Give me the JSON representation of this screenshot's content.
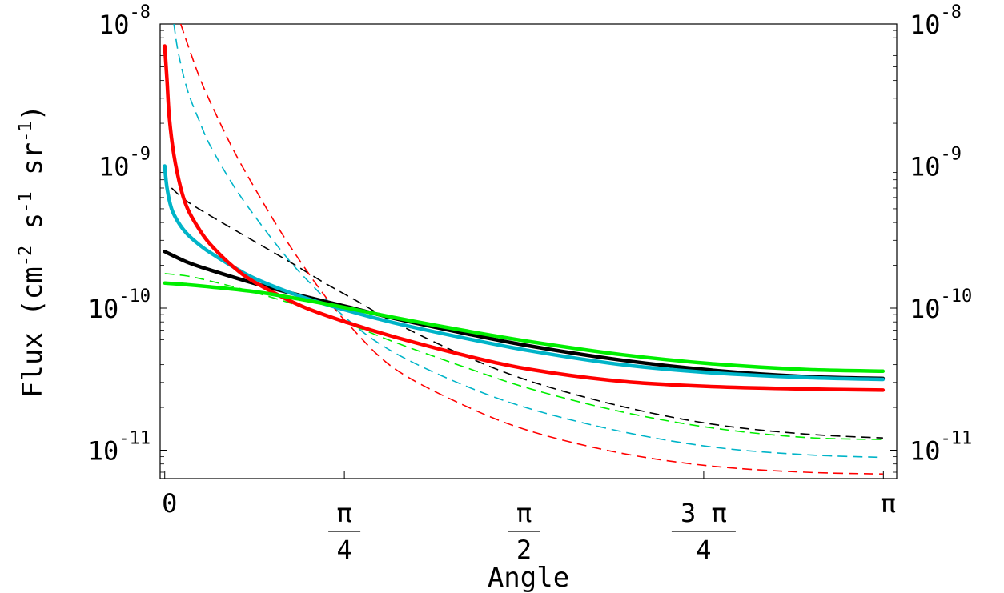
{
  "chart_data": {
    "type": "line",
    "xlabel": "Angle",
    "ylabel": "Flux (cm-2 s-1 sr-1)",
    "ylabel_parts": {
      "pre": "Flux (cm",
      "sup1": "-2",
      "mid1": " s",
      "sup2": "-1",
      "mid2": " sr",
      "sup3": "-1",
      "post": ")"
    },
    "xlim": [
      -0.02,
      3.2
    ],
    "ylim_log10": [
      -11.2,
      -8
    ],
    "y_scale": "log",
    "x_ticks": [
      {
        "value": 0,
        "num": "0",
        "den": ""
      },
      {
        "value": 0.7854,
        "num": "π",
        "den": "4"
      },
      {
        "value": 1.5708,
        "num": "π",
        "den": "2"
      },
      {
        "value": 2.3562,
        "num": "3 π",
        "den": "4"
      },
      {
        "value": 3.1416,
        "num": "π",
        "den": ""
      }
    ],
    "y_ticks": [
      {
        "exp": -8,
        "base": "10",
        "sup": "-8"
      },
      {
        "exp": -9,
        "base": "10",
        "sup": "-9"
      },
      {
        "exp": -10,
        "base": "10",
        "sup": "-10"
      },
      {
        "exp": -11,
        "base": "10",
        "sup": "-11"
      }
    ],
    "series": [
      {
        "color": "#000000",
        "style": "dashed",
        "x": [
          0.03,
          0.1,
          0.25,
          0.4,
          0.55,
          0.7,
          0.85,
          1.0,
          1.3,
          1.6,
          2.0,
          2.4,
          2.8,
          3.14
        ],
        "y": [
          7e-10,
          5.6e-10,
          4e-10,
          2.9e-10,
          2.1e-10,
          1.5e-10,
          1.1e-10,
          8e-11,
          4.7e-11,
          3.05e-11,
          2.03e-11,
          1.52e-11,
          1.3e-11,
          1.22e-11
        ]
      },
      {
        "color": "#00b4c8",
        "style": "dashed",
        "x": [
          0.04,
          0.06,
          0.1,
          0.15,
          0.2,
          0.3,
          0.4,
          0.5,
          0.6,
          0.8,
          1.0,
          1.3,
          1.6,
          2.0,
          2.4,
          2.8,
          3.14
        ],
        "y": [
          1e-08,
          6.2e-09,
          3.4e-09,
          2.1e-09,
          1.38e-09,
          7.3e-10,
          4.3e-10,
          2.65e-10,
          1.72e-10,
          8.3e-11,
          4.9e-11,
          2.9e-11,
          1.95e-11,
          1.35e-11,
          1.05e-11,
          9.3e-12,
          8.9e-12
        ]
      },
      {
        "color": "#ff0000",
        "style": "dashed",
        "x": [
          0.07,
          0.1,
          0.15,
          0.2,
          0.3,
          0.4,
          0.5,
          0.6,
          0.7,
          0.8,
          1.0,
          1.3,
          1.6,
          2.0,
          2.4,
          2.8,
          3.14
        ],
        "y": [
          1e-08,
          7.2e-09,
          4.3e-09,
          2.8e-09,
          1.3e-09,
          6.7e-10,
          3.6e-10,
          2.05e-10,
          1.22e-10,
          7.8e-11,
          3.8e-11,
          2.1e-11,
          1.36e-11,
          9.5e-12,
          7.7e-12,
          7e-12,
          6.8e-12
        ]
      },
      {
        "color": "#00ee00",
        "style": "dashed",
        "x": [
          0.0,
          0.1,
          0.2,
          0.4,
          0.6,
          0.8,
          1.0,
          1.3,
          1.6,
          2.0,
          2.4,
          2.8,
          3.14
        ],
        "y": [
          1.75e-10,
          1.68e-10,
          1.55e-10,
          1.28e-10,
          1.02e-10,
          7.8e-11,
          5.8e-11,
          3.9e-11,
          2.7e-11,
          1.86e-11,
          1.43e-11,
          1.23e-11,
          1.19e-11
        ]
      },
      {
        "color": "#000000",
        "style": "solid",
        "x": [
          0.0,
          0.1,
          0.2,
          0.4,
          0.6,
          0.8,
          1.0,
          1.3,
          1.6,
          2.0,
          2.4,
          2.8,
          3.14
        ],
        "y": [
          2.5e-10,
          2.1e-10,
          1.85e-10,
          1.48e-10,
          1.22e-10,
          1.02e-10,
          8.5e-11,
          6.7e-11,
          5.4e-11,
          4.3e-11,
          3.65e-11,
          3.3e-11,
          3.2e-11
        ]
      },
      {
        "color": "#00b4c8",
        "style": "solid",
        "x": [
          0.0,
          0.01,
          0.03,
          0.06,
          0.1,
          0.15,
          0.2,
          0.3,
          0.4,
          0.6,
          0.8,
          1.0,
          1.3,
          1.6,
          2.0,
          2.4,
          2.8,
          3.14
        ],
        "y": [
          1e-09,
          7e-10,
          5e-10,
          4e-10,
          3.3e-10,
          2.8e-10,
          2.45e-10,
          1.95e-10,
          1.6e-10,
          1.2e-10,
          9.6e-11,
          7.9e-11,
          6.2e-11,
          5e-11,
          4e-11,
          3.5e-11,
          3.25e-11,
          3.15e-11
        ]
      },
      {
        "color": "#ff0000",
        "style": "solid",
        "x": [
          0.0,
          0.01,
          0.02,
          0.04,
          0.07,
          0.1,
          0.15,
          0.2,
          0.3,
          0.4,
          0.6,
          0.8,
          1.0,
          1.3,
          1.6,
          2.0,
          2.4,
          2.8,
          3.14
        ],
        "y": [
          7e-09,
          4e-09,
          2.2e-09,
          1.2e-09,
          7e-10,
          5e-10,
          3.6e-10,
          2.8e-10,
          1.95e-10,
          1.5e-10,
          1.03e-10,
          7.9e-11,
          6.3e-11,
          4.7e-11,
          3.7e-11,
          3.05e-11,
          2.8e-11,
          2.7e-11,
          2.65e-11
        ]
      },
      {
        "color": "#00ee00",
        "style": "solid",
        "x": [
          0.0,
          0.1,
          0.2,
          0.4,
          0.6,
          0.8,
          1.0,
          1.3,
          1.6,
          2.0,
          2.4,
          2.8,
          3.14
        ],
        "y": [
          1.5e-10,
          1.46e-10,
          1.41e-10,
          1.3e-10,
          1.15e-10,
          1e-10,
          8.6e-11,
          7e-11,
          5.8e-11,
          4.7e-11,
          4.05e-11,
          3.7e-11,
          3.6e-11
        ]
      }
    ]
  }
}
